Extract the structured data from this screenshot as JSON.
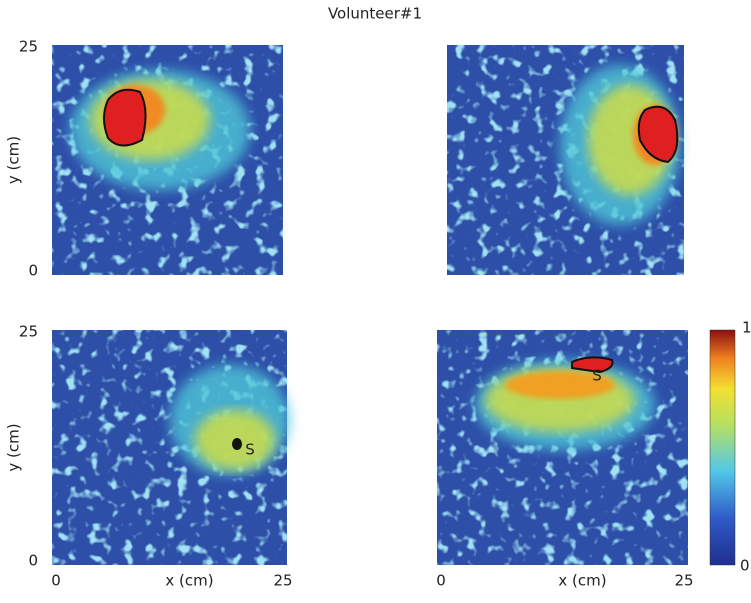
{
  "title": "Volunteer#1",
  "panels": [
    {
      "y_label": "y (cm)",
      "y_ticks": [
        25,
        0
      ]
    },
    {},
    {
      "y_label": "y (cm)",
      "y_ticks": [
        25,
        0
      ],
      "x_label": "x (cm)",
      "x_ticks": [
        0,
        25
      ],
      "annotation": "S"
    },
    {
      "x_label": "x (cm)",
      "x_ticks": [
        0,
        25
      ],
      "annotation": "S"
    }
  ],
  "colorbar": {
    "ticks": [
      1,
      0
    ]
  }
}
